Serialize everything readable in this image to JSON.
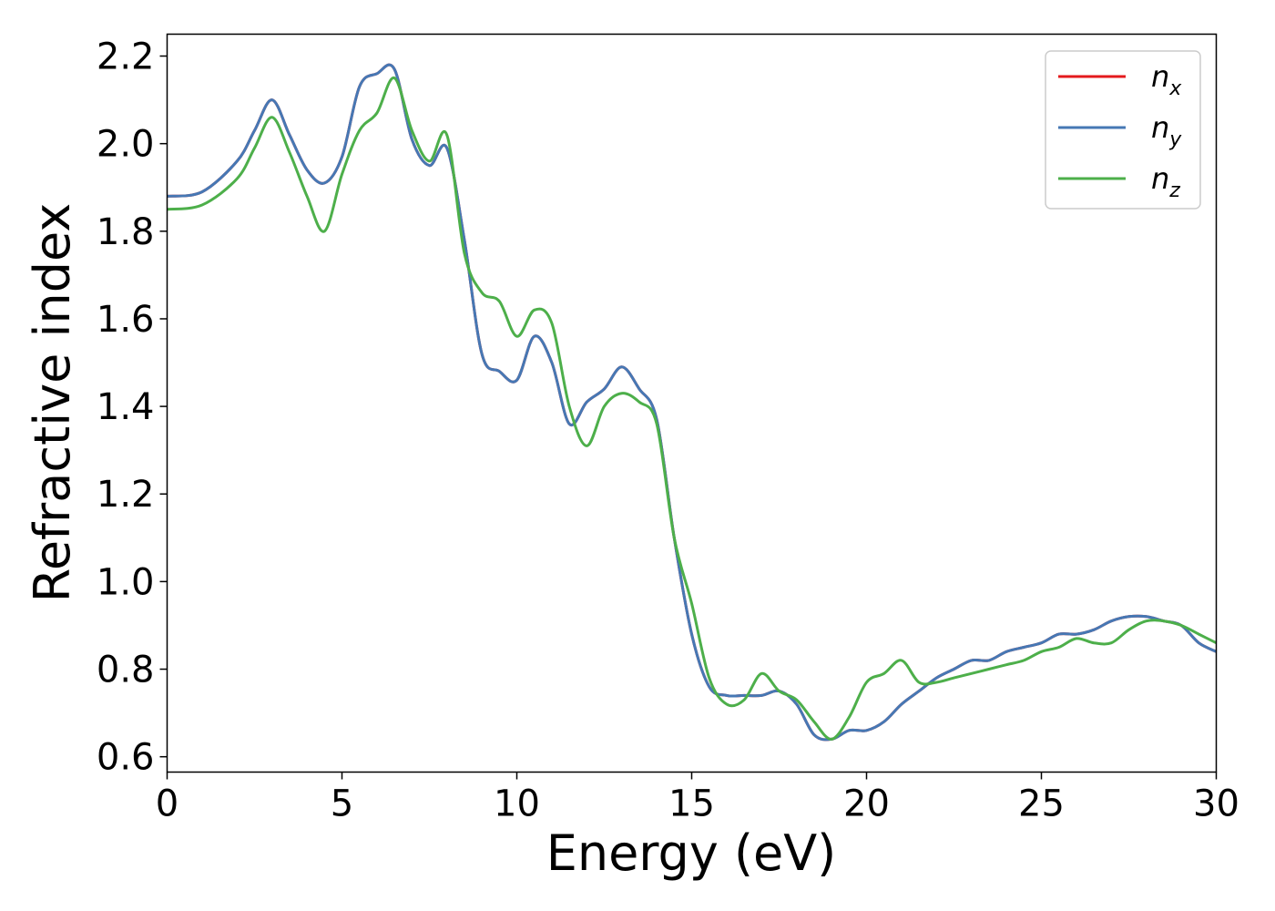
{
  "chart_data": {
    "type": "line",
    "title": "",
    "xlabel": "Energy (eV)",
    "ylabel": "Refractive index",
    "xlim": [
      0,
      30
    ],
    "ylim": [
      0.565,
      2.25
    ],
    "xticks": [
      0,
      5,
      10,
      15,
      20,
      25,
      30
    ],
    "xtick_labels": [
      "0",
      "5",
      "10",
      "15",
      "20",
      "25",
      "30"
    ],
    "yticks": [
      0.6,
      0.8,
      1.0,
      1.2,
      1.4,
      1.6,
      1.8,
      2.0,
      2.2
    ],
    "ytick_labels": [
      "0.6",
      "0.8",
      "1.0",
      "1.2",
      "1.4",
      "1.6",
      "1.8",
      "2.0",
      "2.2"
    ],
    "grid": false,
    "legend_position": "top-right",
    "series": [
      {
        "name": "n_x",
        "name_main": "n",
        "name_sub": "x",
        "color": "#e41a1c",
        "x": [
          0,
          1,
          2,
          2.5,
          3,
          3.5,
          4,
          4.5,
          5,
          5.5,
          6,
          6.5,
          7,
          7.5,
          8,
          8.5,
          9,
          9.5,
          10,
          10.5,
          11,
          11.5,
          12,
          12.5,
          13,
          13.5,
          14,
          14.5,
          15,
          15.5,
          16,
          16.5,
          17,
          17.5,
          18,
          18.5,
          19,
          19.5,
          20,
          20.5,
          21,
          21.5,
          22,
          22.5,
          23,
          23.5,
          24,
          24.5,
          25,
          25.5,
          26,
          26.5,
          27,
          27.5,
          28,
          28.5,
          29,
          29.5,
          30
        ],
        "y": [
          1.88,
          1.89,
          1.96,
          2.03,
          2.1,
          2.02,
          1.94,
          1.91,
          1.97,
          2.13,
          2.16,
          2.17,
          2.01,
          1.95,
          1.99,
          1.78,
          1.52,
          1.48,
          1.46,
          1.56,
          1.5,
          1.36,
          1.41,
          1.44,
          1.49,
          1.44,
          1.37,
          1.1,
          0.88,
          0.76,
          0.74,
          0.74,
          0.74,
          0.75,
          0.72,
          0.65,
          0.64,
          0.66,
          0.66,
          0.68,
          0.72,
          0.75,
          0.78,
          0.8,
          0.82,
          0.82,
          0.84,
          0.85,
          0.86,
          0.88,
          0.88,
          0.89,
          0.91,
          0.92,
          0.92,
          0.91,
          0.9,
          0.86,
          0.84
        ]
      },
      {
        "name": "n_y",
        "name_main": "n",
        "name_sub": "y",
        "color": "#4678b4",
        "x": [
          0,
          1,
          2,
          2.5,
          3,
          3.5,
          4,
          4.5,
          5,
          5.5,
          6,
          6.5,
          7,
          7.5,
          8,
          8.5,
          9,
          9.5,
          10,
          10.5,
          11,
          11.5,
          12,
          12.5,
          13,
          13.5,
          14,
          14.5,
          15,
          15.5,
          16,
          16.5,
          17,
          17.5,
          18,
          18.5,
          19,
          19.5,
          20,
          20.5,
          21,
          21.5,
          22,
          22.5,
          23,
          23.5,
          24,
          24.5,
          25,
          25.5,
          26,
          26.5,
          27,
          27.5,
          28,
          28.5,
          29,
          29.5,
          30
        ],
        "y": [
          1.88,
          1.89,
          1.96,
          2.03,
          2.1,
          2.02,
          1.94,
          1.91,
          1.97,
          2.13,
          2.16,
          2.17,
          2.01,
          1.95,
          1.99,
          1.78,
          1.52,
          1.48,
          1.46,
          1.56,
          1.5,
          1.36,
          1.41,
          1.44,
          1.49,
          1.44,
          1.37,
          1.1,
          0.88,
          0.76,
          0.74,
          0.74,
          0.74,
          0.75,
          0.72,
          0.65,
          0.64,
          0.66,
          0.66,
          0.68,
          0.72,
          0.75,
          0.78,
          0.8,
          0.82,
          0.82,
          0.84,
          0.85,
          0.86,
          0.88,
          0.88,
          0.89,
          0.91,
          0.92,
          0.92,
          0.91,
          0.9,
          0.86,
          0.84
        ]
      },
      {
        "name": "n_z",
        "name_main": "n",
        "name_sub": "z",
        "color": "#4daf4a",
        "x": [
          0,
          1,
          2,
          2.5,
          3,
          3.5,
          4,
          4.5,
          5,
          5.5,
          6,
          6.5,
          7,
          7.5,
          8,
          8.5,
          9,
          9.5,
          10,
          10.5,
          11,
          11.5,
          12,
          12.5,
          13,
          13.5,
          14,
          14.5,
          15,
          15.5,
          16,
          16.5,
          17,
          17.5,
          18,
          18.5,
          19,
          19.5,
          20,
          20.5,
          21,
          21.5,
          22,
          22.5,
          23,
          23.5,
          24,
          24.5,
          25,
          25.5,
          26,
          26.5,
          27,
          27.5,
          28,
          28.5,
          29,
          29.5,
          30
        ],
        "y": [
          1.85,
          1.86,
          1.92,
          1.99,
          2.06,
          1.98,
          1.88,
          1.8,
          1.93,
          2.03,
          2.07,
          2.15,
          2.03,
          1.96,
          2.02,
          1.75,
          1.66,
          1.64,
          1.56,
          1.62,
          1.59,
          1.4,
          1.31,
          1.4,
          1.43,
          1.41,
          1.36,
          1.1,
          0.95,
          0.78,
          0.72,
          0.73,
          0.79,
          0.75,
          0.73,
          0.68,
          0.64,
          0.69,
          0.77,
          0.79,
          0.82,
          0.77,
          0.77,
          0.78,
          0.79,
          0.8,
          0.81,
          0.82,
          0.84,
          0.85,
          0.87,
          0.86,
          0.86,
          0.89,
          0.91,
          0.91,
          0.9,
          0.88,
          0.86
        ]
      }
    ]
  }
}
